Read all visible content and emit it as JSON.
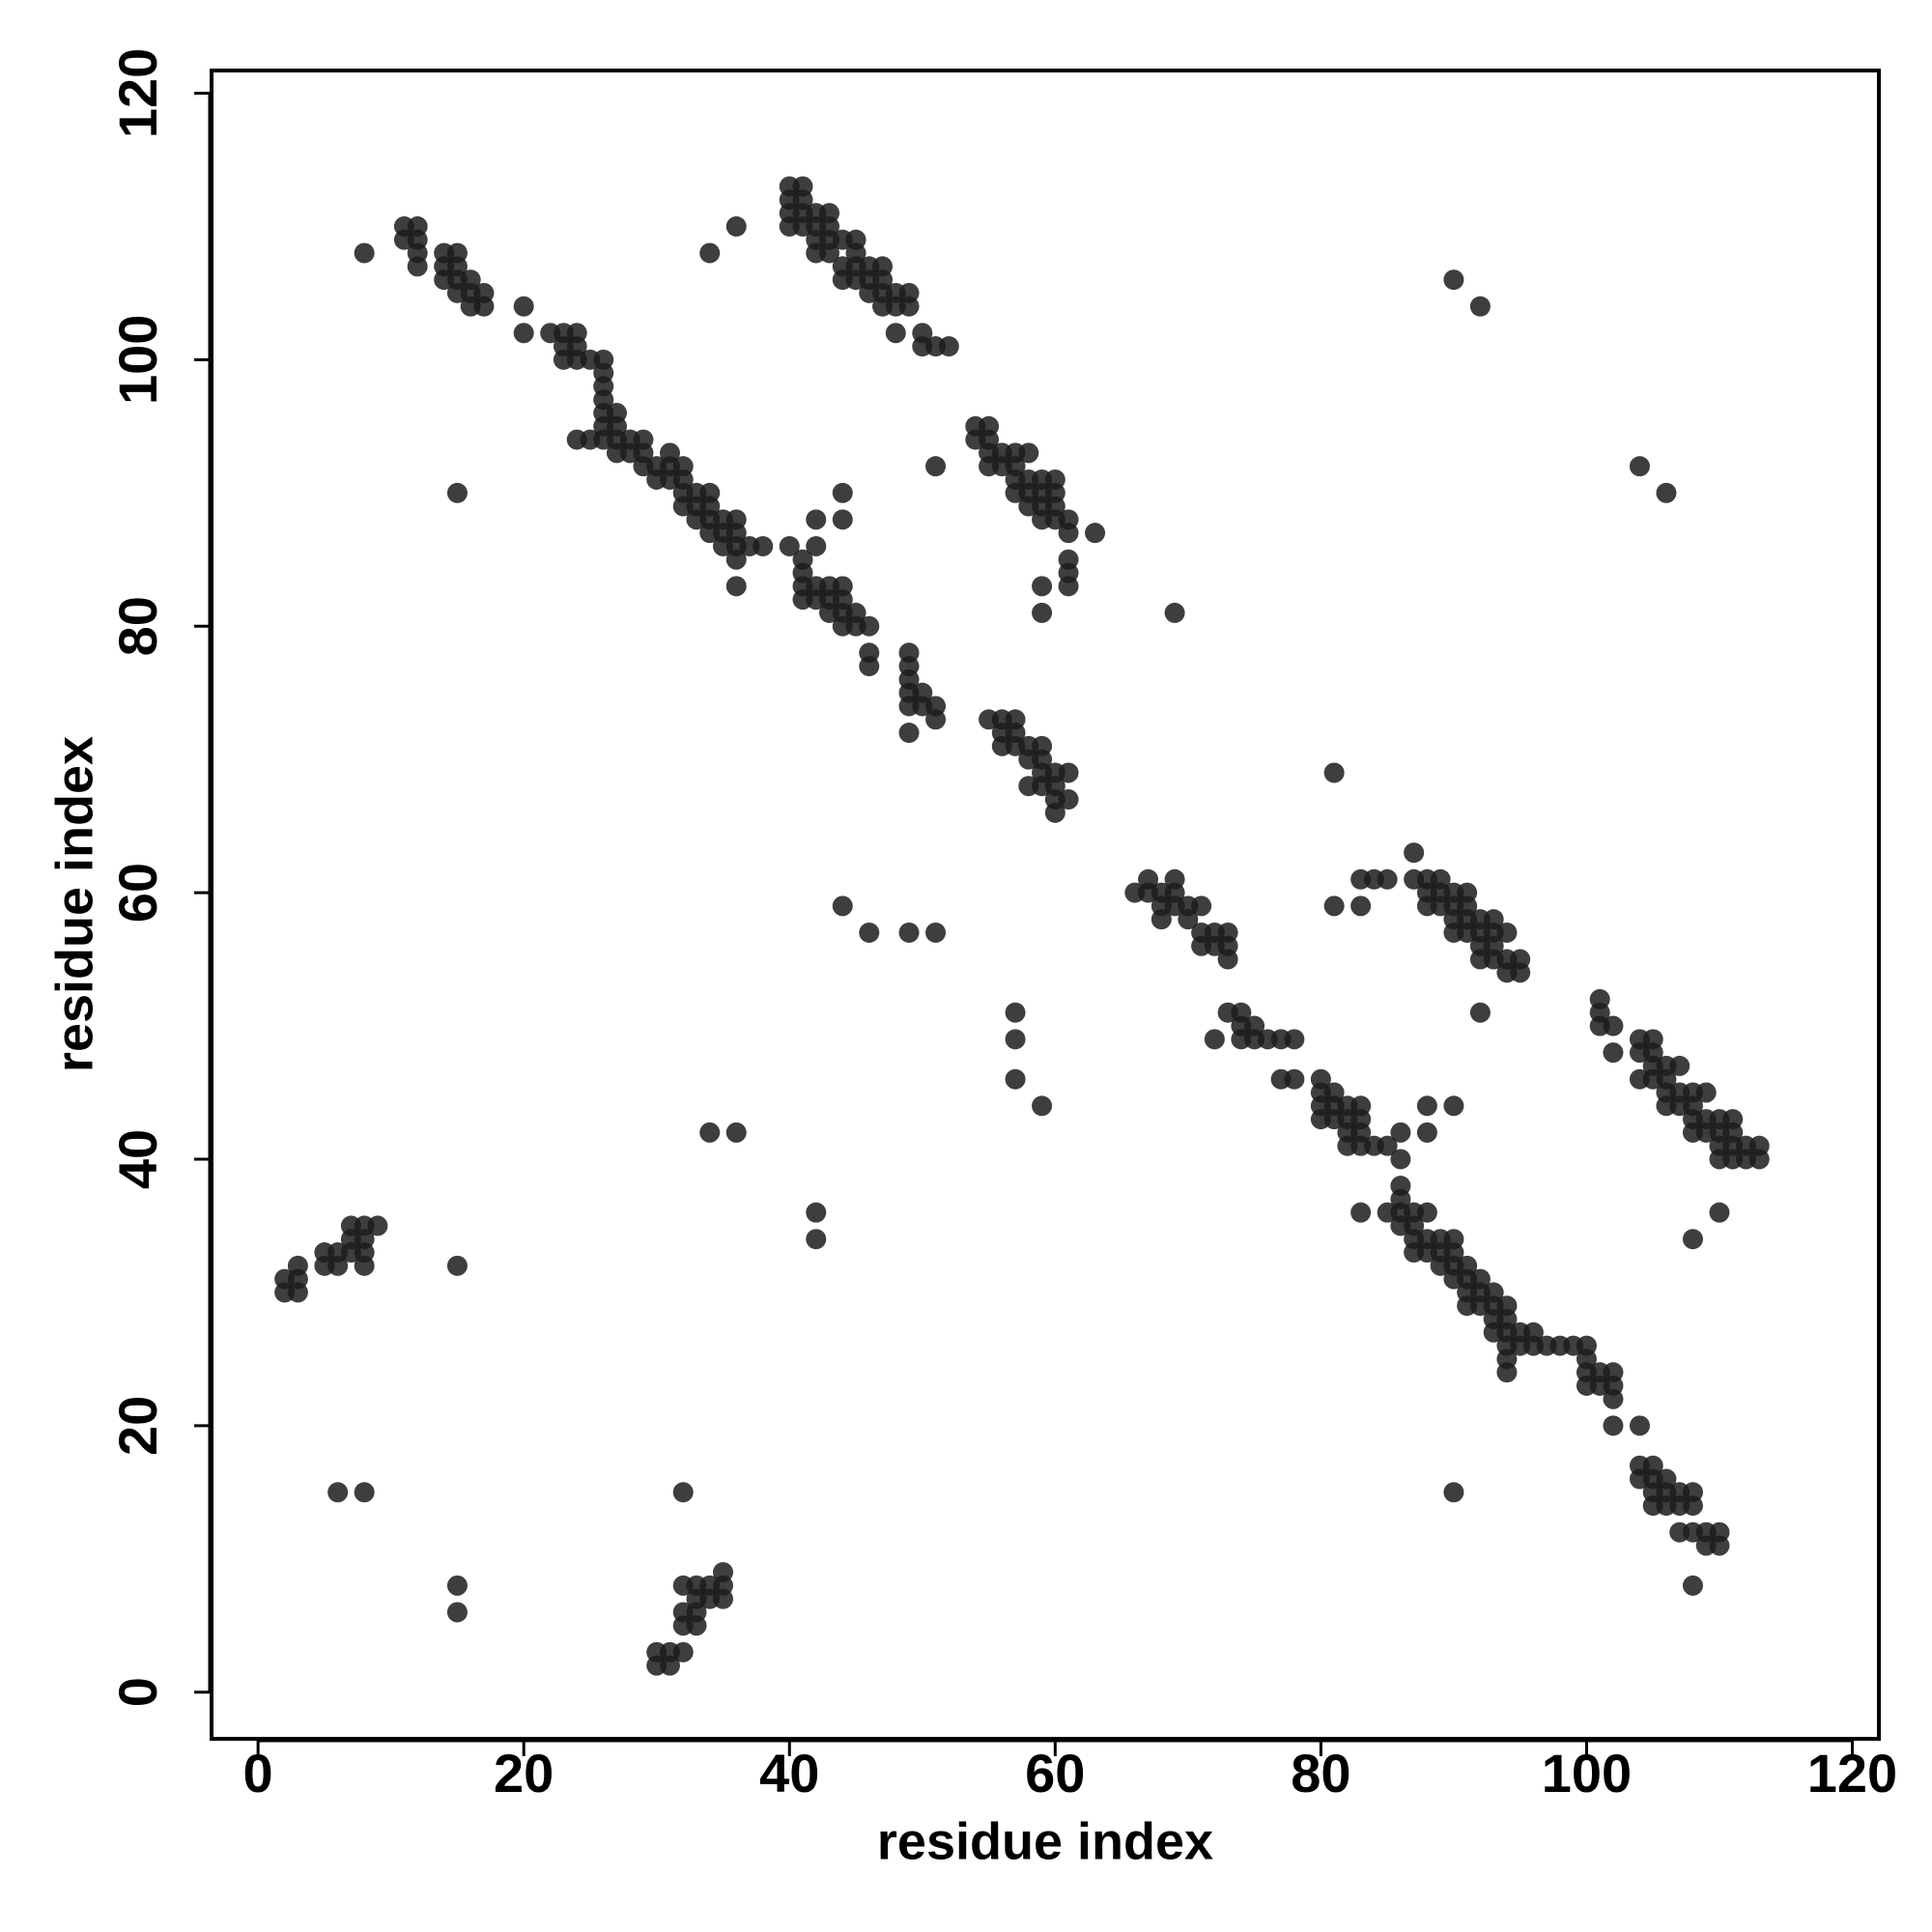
{
  "chart_data": {
    "type": "scatter",
    "x_label": "residue index",
    "y_label": "residue index",
    "xlim": [
      -3.5,
      122
    ],
    "ylim": [
      -3.5,
      121.7
    ],
    "xticks": [
      0,
      20,
      40,
      60,
      80,
      100,
      120
    ],
    "yticks": [
      0,
      20,
      40,
      60,
      80,
      100,
      120
    ],
    "grid": false,
    "series": [
      {
        "color": "#1c1c1c",
        "x": [
          2,
          2,
          3,
          3,
          3,
          5,
          5,
          6,
          6,
          7,
          7,
          7,
          8,
          8,
          8,
          8,
          9,
          6,
          8,
          15,
          15,
          15,
          8,
          15,
          30,
          30,
          31,
          31,
          32,
          32,
          32,
          32,
          33,
          33,
          33,
          33,
          34,
          34,
          35,
          35,
          35,
          32,
          34,
          36,
          42,
          42,
          44,
          46,
          49,
          51,
          11,
          11,
          12,
          12,
          12,
          12,
          14,
          14,
          14,
          15,
          15,
          15,
          15,
          16,
          16,
          16,
          17,
          17,
          20,
          20,
          22,
          23,
          23,
          23,
          24,
          24,
          24,
          25,
          26,
          26,
          26,
          26,
          26,
          26,
          26,
          24,
          25,
          27,
          27,
          27,
          27,
          28,
          28,
          29,
          29,
          29,
          30,
          30,
          31,
          31,
          31,
          32,
          32,
          32,
          32,
          33,
          33,
          33,
          34,
          34,
          34,
          34,
          35,
          35,
          35,
          36,
          36,
          36,
          36,
          36,
          37,
          38,
          40,
          41,
          41,
          41,
          41,
          42,
          42,
          42,
          42,
          43,
          43,
          43,
          44,
          44,
          44,
          44,
          44,
          44,
          45,
          45,
          46,
          46,
          46,
          49,
          49,
          49,
          49,
          49,
          49,
          50,
          50,
          51,
          51,
          34,
          36,
          40,
          40,
          40,
          40,
          41,
          41,
          41,
          41,
          42,
          42,
          42,
          42,
          43,
          43,
          43,
          43,
          44,
          44,
          44,
          45,
          45,
          45,
          45,
          46,
          46,
          46,
          47,
          47,
          47,
          47,
          48,
          48,
          48,
          49,
          49,
          50,
          50,
          51,
          52,
          54,
          54,
          55,
          55,
          55,
          55,
          56,
          56,
          57,
          57,
          57,
          57,
          58,
          58,
          58,
          58,
          59,
          59,
          59,
          59,
          60,
          60,
          60,
          60,
          61,
          61,
          61,
          61,
          61,
          63,
          59,
          59,
          51,
          69,
          55,
          56,
          56,
          56,
          57,
          57,
          57,
          58,
          58,
          58,
          59,
          59,
          59,
          59,
          60,
          60,
          60,
          60,
          61,
          61,
          57,
          57,
          57,
          59,
          81,
          66,
          67,
          67,
          68,
          68,
          68,
          69,
          69,
          69,
          70,
          70,
          71,
          71,
          71,
          72,
          72,
          73,
          73,
          73,
          72,
          73,
          74,
          74,
          74,
          75,
          75,
          76,
          77,
          78,
          77,
          78,
          80,
          80,
          80,
          80,
          81,
          81,
          81,
          82,
          82,
          82,
          82,
          83,
          83,
          83,
          83,
          84,
          85,
          86,
          86,
          88,
          88,
          90,
          81,
          83,
          83,
          84,
          85,
          85,
          86,
          86,
          86,
          86,
          87,
          87,
          87,
          87,
          88,
          88,
          88,
          89,
          89,
          89,
          90,
          90,
          90,
          90,
          91,
          91,
          91,
          91,
          92,
          92,
          92,
          93,
          93,
          93,
          93,
          94,
          94,
          94,
          94,
          94,
          94,
          95,
          95,
          96,
          96,
          97,
          98,
          99,
          100,
          100,
          100,
          100,
          101,
          101,
          102,
          102,
          102,
          102,
          104,
          83,
          104,
          104,
          105,
          105,
          105,
          105,
          106,
          106,
          106,
          107,
          107,
          107,
          108,
          108,
          108,
          109,
          109,
          110,
          110,
          108,
          90,
          87,
          87,
          88,
          88,
          88,
          89,
          89,
          89,
          90,
          90,
          90,
          90,
          91,
          91,
          91,
          91,
          92,
          92,
          92,
          92,
          93,
          93,
          93,
          93,
          94,
          94,
          94,
          95,
          95,
          92,
          101,
          101,
          101,
          102,
          102,
          104,
          104,
          104,
          105,
          105,
          105,
          105,
          106,
          106,
          106,
          106,
          107,
          107,
          107,
          108,
          108,
          108,
          108,
          109,
          109,
          109,
          110,
          110,
          110,
          110,
          111,
          111,
          111,
          111,
          112,
          112,
          113,
          113,
          110,
          108,
          90,
          92,
          104,
          106
        ],
        "values": [
          30,
          31,
          31,
          30,
          32,
          33,
          32,
          32,
          33,
          34,
          35,
          33,
          35,
          34,
          32,
          33,
          35,
          15,
          15,
          32,
          8,
          6,
          108,
          90,
          2,
          3,
          3,
          2,
          3,
          5,
          6,
          8,
          5,
          6,
          7,
          8,
          8,
          7,
          7,
          8,
          9,
          15,
          42,
          42,
          36,
          34,
          59,
          57,
          57,
          57,
          110,
          109,
          110,
          109,
          108,
          107,
          108,
          107,
          106,
          108,
          107,
          106,
          105,
          106,
          105,
          104,
          105,
          104,
          104,
          102,
          102,
          102,
          101,
          100,
          102,
          101,
          100,
          100,
          100,
          99,
          98,
          97,
          96,
          95,
          94,
          94,
          94,
          96,
          95,
          94,
          93,
          94,
          93,
          94,
          93,
          92,
          92,
          91,
          93,
          92,
          91,
          92,
          91,
          90,
          89,
          90,
          89,
          88,
          90,
          89,
          88,
          87,
          88,
          87,
          86,
          88,
          87,
          86,
          85,
          83,
          86,
          86,
          86,
          85,
          84,
          83,
          82,
          88,
          86,
          83,
          82,
          83,
          82,
          81,
          90,
          88,
          83,
          82,
          81,
          80,
          81,
          80,
          80,
          78,
          77,
          78,
          77,
          76,
          75,
          74,
          72,
          75,
          74,
          74,
          73,
          108,
          110,
          113,
          112,
          111,
          110,
          113,
          112,
          111,
          110,
          111,
          110,
          109,
          108,
          111,
          110,
          109,
          108,
          109,
          107,
          106,
          109,
          108,
          107,
          106,
          107,
          106,
          105,
          107,
          106,
          105,
          104,
          105,
          104,
          102,
          105,
          104,
          102,
          101,
          101,
          101,
          95,
          94,
          95,
          94,
          93,
          92,
          93,
          92,
          93,
          92,
          91,
          90,
          93,
          91,
          90,
          89,
          91,
          90,
          89,
          88,
          91,
          90,
          89,
          88,
          88,
          87,
          85,
          84,
          83,
          87,
          83,
          81,
          92,
          81,
          73,
          73,
          72,
          71,
          73,
          72,
          71,
          71,
          70,
          68,
          71,
          70,
          69,
          68,
          69,
          68,
          67,
          66,
          69,
          67,
          51,
          49,
          46,
          44,
          69,
          60,
          61,
          60,
          60,
          59,
          58,
          61,
          60,
          59,
          59,
          58,
          59,
          57,
          56,
          57,
          56,
          57,
          56,
          55,
          49,
          51,
          51,
          50,
          49,
          50,
          49,
          49,
          49,
          49,
          46,
          46,
          46,
          45,
          44,
          43,
          45,
          44,
          43,
          44,
          43,
          42,
          41,
          44,
          43,
          42,
          41,
          41,
          41,
          42,
          40,
          44,
          42,
          44,
          59,
          61,
          59,
          61,
          61,
          36,
          38,
          37,
          36,
          35,
          36,
          35,
          34,
          33,
          36,
          34,
          33,
          34,
          33,
          32,
          34,
          33,
          32,
          31,
          32,
          31,
          30,
          29,
          31,
          30,
          29,
          30,
          29,
          28,
          27,
          29,
          28,
          27,
          26,
          25,
          24,
          27,
          26,
          27,
          26,
          26,
          26,
          26,
          26,
          25,
          24,
          23,
          24,
          23,
          24,
          23,
          22,
          20,
          20,
          36,
          17,
          16,
          17,
          16,
          15,
          14,
          16,
          15,
          14,
          15,
          14,
          12,
          15,
          14,
          12,
          12,
          11,
          12,
          11,
          8,
          15,
          63,
          61,
          61,
          60,
          59,
          61,
          60,
          59,
          60,
          59,
          58,
          57,
          60,
          59,
          58,
          57,
          58,
          57,
          56,
          55,
          58,
          57,
          56,
          55,
          57,
          55,
          54,
          55,
          54,
          51,
          52,
          51,
          50,
          50,
          48,
          49,
          48,
          46,
          49,
          48,
          47,
          46,
          47,
          46,
          45,
          44,
          47,
          45,
          44,
          45,
          44,
          43,
          42,
          45,
          43,
          42,
          43,
          42,
          41,
          40,
          43,
          42,
          41,
          40,
          41,
          40,
          41,
          40,
          36,
          34,
          106,
          104,
          92,
          90
        ]
      }
    ]
  }
}
